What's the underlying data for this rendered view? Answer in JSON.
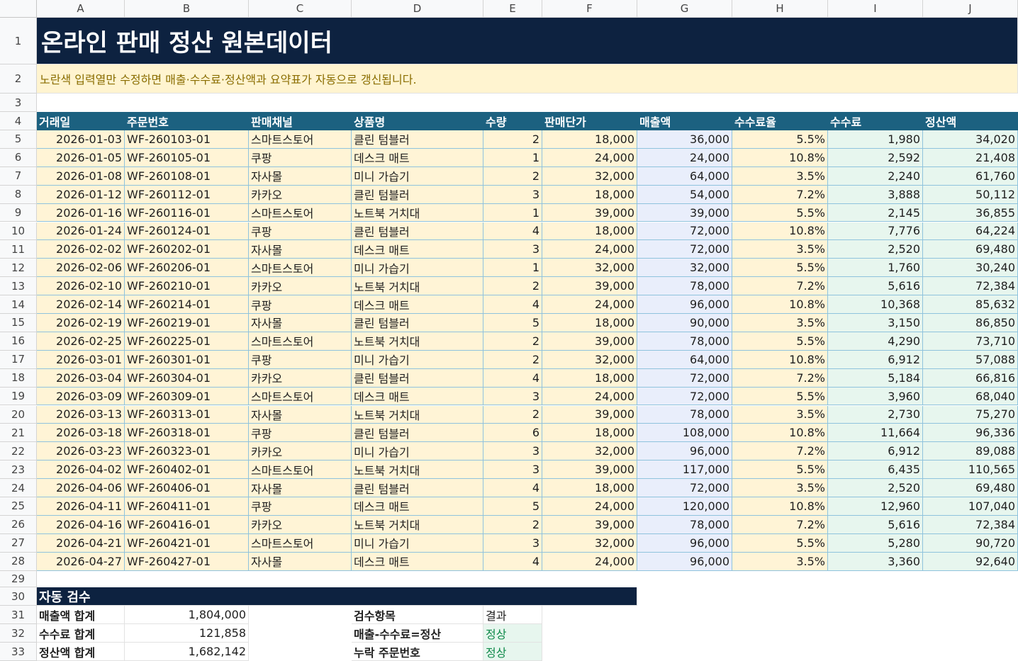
{
  "columns": [
    "A",
    "B",
    "C",
    "D",
    "E",
    "F",
    "G",
    "H",
    "I",
    "J"
  ],
  "title": "온라인 판매 정산 원본데이터",
  "note": "노란색 입력열만 수정하면 매출·수수료·정산액과 요약표가 자동으로 갱신됩니다.",
  "headers": [
    "거래일",
    "주문번호",
    "판매채널",
    "상품명",
    "수량",
    "판매단가",
    "매출액",
    "수수료율",
    "수수료",
    "정산액"
  ],
  "rows": [
    [
      "2026-01-03",
      "WF-260103-01",
      "스마트스토어",
      "클린 텀블러",
      "2",
      "18,000",
      "36,000",
      "5.5%",
      "1,980",
      "34,020"
    ],
    [
      "2026-01-05",
      "WF-260105-01",
      "쿠팡",
      "데스크 매트",
      "1",
      "24,000",
      "24,000",
      "10.8%",
      "2,592",
      "21,408"
    ],
    [
      "2026-01-08",
      "WF-260108-01",
      "자사몰",
      "미니 가습기",
      "2",
      "32,000",
      "64,000",
      "3.5%",
      "2,240",
      "61,760"
    ],
    [
      "2026-01-12",
      "WF-260112-01",
      "카카오",
      "클린 텀블러",
      "3",
      "18,000",
      "54,000",
      "7.2%",
      "3,888",
      "50,112"
    ],
    [
      "2026-01-16",
      "WF-260116-01",
      "스마트스토어",
      "노트북 거치대",
      "1",
      "39,000",
      "39,000",
      "5.5%",
      "2,145",
      "36,855"
    ],
    [
      "2026-01-24",
      "WF-260124-01",
      "쿠팡",
      "클린 텀블러",
      "4",
      "18,000",
      "72,000",
      "10.8%",
      "7,776",
      "64,224"
    ],
    [
      "2026-02-02",
      "WF-260202-01",
      "자사몰",
      "데스크 매트",
      "3",
      "24,000",
      "72,000",
      "3.5%",
      "2,520",
      "69,480"
    ],
    [
      "2026-02-06",
      "WF-260206-01",
      "스마트스토어",
      "미니 가습기",
      "1",
      "32,000",
      "32,000",
      "5.5%",
      "1,760",
      "30,240"
    ],
    [
      "2026-02-10",
      "WF-260210-01",
      "카카오",
      "노트북 거치대",
      "2",
      "39,000",
      "78,000",
      "7.2%",
      "5,616",
      "72,384"
    ],
    [
      "2026-02-14",
      "WF-260214-01",
      "쿠팡",
      "데스크 매트",
      "4",
      "24,000",
      "96,000",
      "10.8%",
      "10,368",
      "85,632"
    ],
    [
      "2026-02-19",
      "WF-260219-01",
      "자사몰",
      "클린 텀블러",
      "5",
      "18,000",
      "90,000",
      "3.5%",
      "3,150",
      "86,850"
    ],
    [
      "2026-02-25",
      "WF-260225-01",
      "스마트스토어",
      "노트북 거치대",
      "2",
      "39,000",
      "78,000",
      "5.5%",
      "4,290",
      "73,710"
    ],
    [
      "2026-03-01",
      "WF-260301-01",
      "쿠팡",
      "미니 가습기",
      "2",
      "32,000",
      "64,000",
      "10.8%",
      "6,912",
      "57,088"
    ],
    [
      "2026-03-04",
      "WF-260304-01",
      "카카오",
      "클린 텀블러",
      "4",
      "18,000",
      "72,000",
      "7.2%",
      "5,184",
      "66,816"
    ],
    [
      "2026-03-09",
      "WF-260309-01",
      "스마트스토어",
      "데스크 매트",
      "3",
      "24,000",
      "72,000",
      "5.5%",
      "3,960",
      "68,040"
    ],
    [
      "2026-03-13",
      "WF-260313-01",
      "자사몰",
      "노트북 거치대",
      "2",
      "39,000",
      "78,000",
      "3.5%",
      "2,730",
      "75,270"
    ],
    [
      "2026-03-18",
      "WF-260318-01",
      "쿠팡",
      "클린 텀블러",
      "6",
      "18,000",
      "108,000",
      "10.8%",
      "11,664",
      "96,336"
    ],
    [
      "2026-03-23",
      "WF-260323-01",
      "카카오",
      "미니 가습기",
      "3",
      "32,000",
      "96,000",
      "7.2%",
      "6,912",
      "89,088"
    ],
    [
      "2026-04-02",
      "WF-260402-01",
      "스마트스토어",
      "노트북 거치대",
      "3",
      "39,000",
      "117,000",
      "5.5%",
      "6,435",
      "110,565"
    ],
    [
      "2026-04-06",
      "WF-260406-01",
      "자사몰",
      "클린 텀블러",
      "4",
      "18,000",
      "72,000",
      "3.5%",
      "2,520",
      "69,480"
    ],
    [
      "2026-04-11",
      "WF-260411-01",
      "쿠팡",
      "데스크 매트",
      "5",
      "24,000",
      "120,000",
      "10.8%",
      "12,960",
      "107,040"
    ],
    [
      "2026-04-16",
      "WF-260416-01",
      "카카오",
      "노트북 거치대",
      "2",
      "39,000",
      "78,000",
      "7.2%",
      "5,616",
      "72,384"
    ],
    [
      "2026-04-21",
      "WF-260421-01",
      "스마트스토어",
      "미니 가습기",
      "3",
      "32,000",
      "96,000",
      "5.5%",
      "5,280",
      "90,720"
    ],
    [
      "2026-04-27",
      "WF-260427-01",
      "자사몰",
      "데스크 매트",
      "4",
      "24,000",
      "96,000",
      "3.5%",
      "3,360",
      "92,640"
    ]
  ],
  "check": {
    "title": "자동 검수",
    "sums": [
      {
        "label": "매출액 합계",
        "value": "1,804,000"
      },
      {
        "label": "수수료 합계",
        "value": "121,858"
      },
      {
        "label": "정산액 합계",
        "value": "1,682,142"
      }
    ],
    "items_header": {
      "label": "검수항목",
      "result": "결과"
    },
    "items": [
      {
        "label": "매출-수수료=정산",
        "result": "정상"
      },
      {
        "label": "누락 주문번호",
        "result": "정상"
      }
    ]
  },
  "colors": {
    "title_bg": "#0d2240",
    "header_bg": "#1c6180",
    "input_bg": "#fff4d6",
    "sales_bg": "#e9eefb",
    "calc_bg": "#e7f6ee",
    "ok": "#0f8a4a"
  }
}
